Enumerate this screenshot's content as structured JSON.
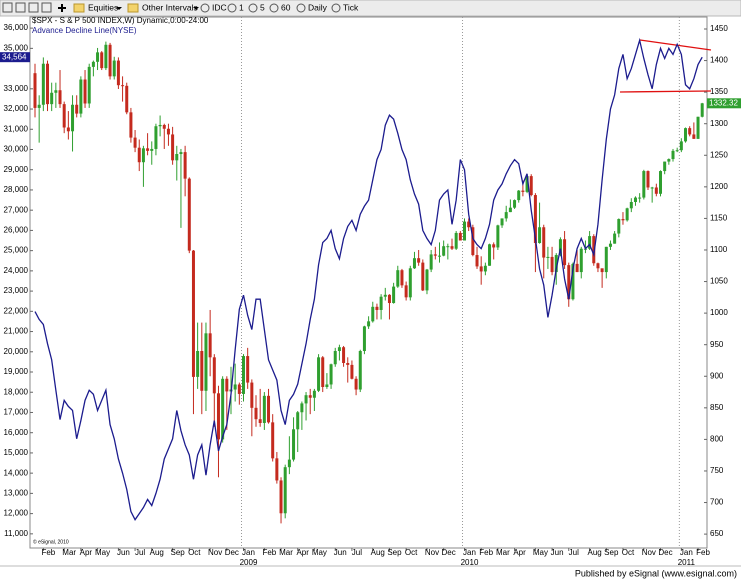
{
  "toolbar": {
    "items": [
      "Equities",
      "Other Intervals",
      "IDC",
      "1",
      "5",
      "60",
      "Daily",
      "Tick"
    ]
  },
  "footer": "Published by eSignal (www.esignal.com)",
  "chart_data": {
    "type": "candlestick",
    "title": "$SPX - S & P 500 INDEX,W) Dynamic,0:00-24:00",
    "copyright": "© eSignal, 2010",
    "categories": [
      null,
      null,
      "Feb",
      null,
      null,
      null,
      null,
      "Mar",
      null,
      null,
      null,
      "Apr",
      null,
      null,
      null,
      "May",
      null,
      null,
      null,
      null,
      "Jun",
      null,
      null,
      null,
      "Jul",
      null,
      null,
      null,
      "Aug",
      null,
      null,
      null,
      null,
      "Sep",
      null,
      null,
      null,
      "Oct",
      null,
      null,
      null,
      null,
      "Nov",
      null,
      null,
      null,
      "Dec",
      null,
      null,
      null,
      "Jan",
      null,
      null,
      null,
      null,
      "Feb",
      null,
      null,
      null,
      "Mar",
      null,
      null,
      null,
      "Apr",
      null,
      null,
      null,
      "May",
      null,
      null,
      null,
      null,
      "Jun",
      null,
      null,
      null,
      "Jul",
      null,
      null,
      null,
      null,
      "Aug",
      null,
      null,
      null,
      "Sep",
      null,
      null,
      null,
      "Oct",
      null,
      null,
      null,
      null,
      "Nov",
      null,
      null,
      null,
      "Dec",
      null,
      null,
      null,
      null,
      "Jan",
      null,
      null,
      null,
      "Feb",
      null,
      null,
      null,
      "Mar",
      null,
      null,
      null,
      "Apr",
      null,
      null,
      null,
      null,
      "May",
      null,
      null,
      null,
      "Jun",
      null,
      null,
      null,
      "Jul",
      null,
      null,
      null,
      null,
      "Aug",
      null,
      null,
      null,
      "Sep",
      null,
      null,
      null,
      "Oct",
      null,
      null,
      null,
      null,
      "Nov",
      null,
      null,
      null,
      "Dec",
      null,
      null,
      null,
      null,
      "Jan",
      null,
      null,
      null,
      "Feb",
      null
    ],
    "year_labels": [
      "2009",
      "2010",
      "2011"
    ],
    "year_grid": true,
    "candles": {
      "axis": "y2",
      "up_color": "#2f9f2f",
      "down_color": "#c42a1e",
      "open": [
        1380,
        1325,
        1330,
        1395,
        1331,
        1349,
        1353,
        1331,
        1294,
        1288,
        1330,
        1316,
        1370,
        1332,
        1390,
        1398,
        1413,
        1388,
        1425,
        1375,
        1400,
        1361,
        1360,
        1318,
        1278,
        1262,
        1239,
        1261,
        1257,
        1260,
        1296,
        1298,
        1292,
        1283,
        1242,
        1252,
        1255,
        1213,
        1099,
        899,
        940,
        877,
        968,
        930,
        873,
        800,
        896,
        876,
        879,
        887,
        872,
        932,
        890,
        850,
        832,
        826,
        869,
        827,
        770,
        735,
        683,
        756,
        768,
        816,
        843,
        857,
        870,
        866,
        877,
        930,
        883,
        887,
        919,
        940,
        946,
        921,
        918,
        896,
        879,
        940,
        979,
        987,
        1010,
        1005,
        1026,
        1029,
        1016,
        1042,
        1068,
        1044,
        1025,
        1071,
        1087,
        1080,
        1036,
        1069,
        1093,
        1091,
        1091,
        1106,
        1106,
        1102,
        1127,
        1115,
        1145,
        1136,
        1092,
        1074,
        1066,
        1075,
        1109,
        1104,
        1139,
        1150,
        1160,
        1167,
        1179,
        1194,
        1192,
        1217,
        1187,
        1111,
        1136,
        1088,
        1089,
        1065,
        1092,
        1117,
        1076,
        1022,
        1078,
        1065,
        1102,
        1102,
        1122,
        1079,
        1071,
        1065,
        1105,
        1110,
        1126,
        1149,
        1147,
        1166,
        1176,
        1183,
        1183,
        1225,
        1199,
        1199,
        1189,
        1225,
        1240,
        1244,
        1257,
        1258,
        1272,
        1293,
        1283,
        1276,
        1311
      ],
      "high": [
        1395,
        1345,
        1405,
        1400,
        1365,
        1365,
        1385,
        1335,
        1320,
        1345,
        1345,
        1375,
        1385,
        1395,
        1400,
        1420,
        1415,
        1430,
        1428,
        1406,
        1405,
        1375,
        1365,
        1325,
        1290,
        1275,
        1265,
        1285,
        1272,
        1300,
        1313,
        1300,
        1300,
        1295,
        1265,
        1260,
        1265,
        1215,
        1100,
        985,
        985,
        985,
        1005,
        935,
        885,
        900,
        900,
        915,
        920,
        890,
        935,
        945,
        895,
        870,
        880,
        875,
        880,
        840,
        780,
        740,
        760,
        805,
        835,
        845,
        860,
        875,
        880,
        880,
        935,
        932,
        905,
        920,
        945,
        950,
        948,
        930,
        925,
        900,
        942,
        980,
        995,
        1018,
        1015,
        1030,
        1040,
        1030,
        1048,
        1075,
        1070,
        1050,
        1075,
        1097,
        1100,
        1085,
        1070,
        1100,
        1105,
        1112,
        1115,
        1110,
        1118,
        1130,
        1130,
        1150,
        1150,
        1140,
        1105,
        1090,
        1080,
        1110,
        1112,
        1140,
        1150,
        1170,
        1180,
        1180,
        1195,
        1210,
        1220,
        1220,
        1190,
        1175,
        1140,
        1105,
        1105,
        1095,
        1120,
        1130,
        1080,
        1080,
        1100,
        1105,
        1115,
        1130,
        1125,
        1080,
        1070,
        1105,
        1115,
        1130,
        1150,
        1160,
        1167,
        1182,
        1185,
        1190,
        1227,
        1226,
        1200,
        1205,
        1226,
        1240,
        1245,
        1260,
        1262,
        1277,
        1294,
        1296,
        1302,
        1311,
        1333
      ],
      "low": [
        1310,
        1270,
        1320,
        1320,
        1320,
        1325,
        1325,
        1285,
        1275,
        1256,
        1310,
        1310,
        1325,
        1325,
        1375,
        1385,
        1385,
        1385,
        1370,
        1370,
        1355,
        1335,
        1315,
        1270,
        1255,
        1225,
        1200,
        1250,
        1235,
        1250,
        1280,
        1260,
        1265,
        1235,
        1210,
        1135,
        1185,
        1095,
        840,
        880,
        840,
        845,
        900,
        820,
        740,
        795,
        815,
        840,
        860,
        855,
        860,
        880,
        805,
        820,
        820,
        815,
        825,
        765,
        730,
        667,
        675,
        745,
        765,
        780,
        815,
        830,
        840,
        845,
        875,
        875,
        880,
        880,
        915,
        925,
        915,
        890,
        895,
        870,
        875,
        935,
        975,
        985,
        990,
        990,
        1020,
        990,
        1015,
        1040,
        1040,
        1020,
        1020,
        1070,
        1075,
        1035,
        1030,
        1065,
        1085,
        1080,
        1090,
        1085,
        1100,
        1100,
        1115,
        1115,
        1130,
        1090,
        1070,
        1045,
        1060,
        1075,
        1085,
        1100,
        1135,
        1145,
        1160,
        1165,
        1175,
        1185,
        1190,
        1185,
        1065,
        1110,
        1055,
        1070,
        1060,
        1045,
        1090,
        1070,
        1010,
        1020,
        1065,
        1055,
        1095,
        1100,
        1075,
        1065,
        1040,
        1055,
        1100,
        1110,
        1120,
        1140,
        1145,
        1160,
        1170,
        1175,
        1180,
        1195,
        1175,
        1185,
        1185,
        1220,
        1235,
        1240,
        1255,
        1255,
        1270,
        1280,
        1276,
        1276,
        1310
      ],
      "close": [
        1325,
        1330,
        1395,
        1331,
        1349,
        1353,
        1331,
        1294,
        1288,
        1330,
        1316,
        1370,
        1332,
        1390,
        1398,
        1413,
        1388,
        1425,
        1375,
        1400,
        1361,
        1360,
        1318,
        1278,
        1262,
        1239,
        1261,
        1257,
        1260,
        1296,
        1298,
        1292,
        1283,
        1242,
        1252,
        1255,
        1213,
        1099,
        899,
        940,
        877,
        968,
        930,
        873,
        800,
        896,
        876,
        879,
        887,
        872,
        932,
        890,
        850,
        832,
        826,
        869,
        827,
        770,
        735,
        683,
        756,
        768,
        816,
        843,
        857,
        870,
        866,
        877,
        930,
        883,
        887,
        919,
        940,
        946,
        921,
        918,
        896,
        879,
        940,
        979,
        987,
        1010,
        1005,
        1026,
        1029,
        1016,
        1042,
        1068,
        1044,
        1025,
        1071,
        1087,
        1080,
        1036,
        1069,
        1093,
        1091,
        1091,
        1106,
        1106,
        1102,
        1127,
        1115,
        1145,
        1136,
        1092,
        1074,
        1066,
        1075,
        1109,
        1104,
        1139,
        1150,
        1160,
        1167,
        1179,
        1194,
        1192,
        1217,
        1187,
        1111,
        1136,
        1088,
        1089,
        1065,
        1092,
        1117,
        1076,
        1022,
        1078,
        1065,
        1102,
        1102,
        1122,
        1079,
        1071,
        1065,
        1105,
        1110,
        1126,
        1149,
        1147,
        1166,
        1176,
        1183,
        1183,
        1225,
        1199,
        1199,
        1189,
        1225,
        1240,
        1244,
        1257,
        1258,
        1272,
        1293,
        1283,
        1276,
        1311,
        1332.32
      ]
    },
    "series": [
      {
        "name": "Advance Decline Line(NYSE)",
        "color": "#1c1c8e",
        "axis": "y",
        "last_value_label": "34,564",
        "values": [
          21990,
          21600,
          21350,
          20400,
          19600,
          18100,
          16650,
          17600,
          17300,
          17100,
          15700,
          16600,
          17600,
          18100,
          17900,
          17100,
          17600,
          18100,
          16400,
          15700,
          14700,
          14000,
          13200,
          12100,
          11700,
          12000,
          12300,
          12700,
          12400,
          13000,
          13700,
          14700,
          15200,
          15700,
          17100,
          16100,
          15400,
          14900,
          13700,
          14900,
          15400,
          13900,
          15400,
          16600,
          15100,
          15800,
          16400,
          17900,
          20100,
          22100,
          22800,
          21800,
          21100,
          22600,
          22600,
          21100,
          19600,
          19100,
          18600,
          17100,
          16400,
          17600,
          17900,
          18400,
          19400,
          20400,
          21600,
          22600,
          24300,
          25400,
          25600,
          26000,
          25100,
          24600,
          25600,
          26200,
          26500,
          26000,
          26800,
          27200,
          27500,
          28500,
          29500,
          30000,
          31200,
          31700,
          31500,
          30800,
          30000,
          29500,
          28500,
          27800,
          27300,
          26000,
          25600,
          25300,
          26000,
          27500,
          27800,
          28000,
          26300,
          27500,
          29500,
          29000,
          26800,
          25600,
          25300,
          25100,
          25600,
          26300,
          27500,
          28000,
          28300,
          28800,
          29200,
          29500,
          29300,
          28300,
          28800,
          27000,
          25600,
          24100,
          23300,
          21700,
          22800,
          24100,
          25100,
          23600,
          22600,
          24100,
          25100,
          25600,
          25100,
          25300,
          24800,
          26300,
          28500,
          30500,
          32000,
          32700,
          34000,
          34700,
          33500,
          34000,
          34700,
          35400,
          34500,
          33700,
          33000,
          34200,
          35000,
          34500,
          35000,
          34700,
          35200,
          34700,
          33200,
          33000,
          33500,
          34200,
          34564
        ]
      }
    ],
    "ylim": [
      10300,
      36550
    ],
    "yticks": [
      {
        "value": 11000,
        "label": "11,000"
      },
      {
        "value": 12000,
        "label": "12,000"
      },
      {
        "value": 13000,
        "label": "13,000"
      },
      {
        "value": 14000,
        "label": "14,000"
      },
      {
        "value": 15000,
        "label": "15,000"
      },
      {
        "value": 16000,
        "label": "16,000"
      },
      {
        "value": 17000,
        "label": "17,000"
      },
      {
        "value": 18000,
        "label": "18,000"
      },
      {
        "value": 19000,
        "label": "19,000"
      },
      {
        "value": 20000,
        "label": "20,000"
      },
      {
        "value": 21000,
        "label": "21,000"
      },
      {
        "value": 22000,
        "label": "22,000"
      },
      {
        "value": 23000,
        "label": "23,000"
      },
      {
        "value": 24000,
        "label": "24,000"
      },
      {
        "value": 25000,
        "label": "25,000"
      },
      {
        "value": 26000,
        "label": "26,000"
      },
      {
        "value": 27000,
        "label": "27,000"
      },
      {
        "value": 28000,
        "label": "28,000"
      },
      {
        "value": 29000,
        "label": "29,000"
      },
      {
        "value": 30000,
        "label": "30,000"
      },
      {
        "value": 31000,
        "label": "31,000"
      },
      {
        "value": 32000,
        "label": "32,000"
      },
      {
        "value": 33000,
        "label": "33,000"
      },
      {
        "value": 35000,
        "label": "35,000"
      },
      {
        "value": 36000,
        "label": "36,000"
      }
    ],
    "y2lim": [
      628,
      1469
    ],
    "y2ticks": [
      650,
      700,
      750,
      800,
      850,
      900,
      950,
      1000,
      1050,
      1100,
      1150,
      1200,
      1250,
      1300,
      1350,
      1400,
      1450
    ]
  }
}
